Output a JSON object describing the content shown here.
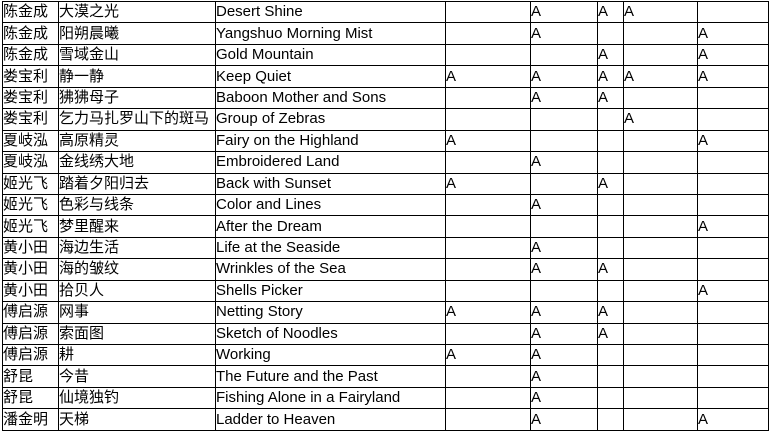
{
  "table": {
    "marker_letter": "A",
    "colors": {
      "background": "#ffffff",
      "border": "#000000",
      "text": "#000000"
    },
    "columns": {
      "author_key": "author",
      "chinese_title_key": "title_cn",
      "english_title_key": "title_en",
      "mark_count": 5
    },
    "rows": [
      {
        "author": "陈金成",
        "title_cn": "大漠之光",
        "title_en": "Desert Shine",
        "marks": [
          "",
          "A",
          "A",
          "A",
          ""
        ]
      },
      {
        "author": "陈金成",
        "title_cn": "阳朔晨曦",
        "title_en": "Yangshuo Morning Mist",
        "marks": [
          "",
          "A",
          "",
          "",
          "A"
        ]
      },
      {
        "author": "陈金成",
        "title_cn": "雪域金山",
        "title_en": "Gold Mountain",
        "marks": [
          "",
          "",
          "A",
          "",
          "A"
        ]
      },
      {
        "author": "娄宝利",
        "title_cn": "静一静",
        "title_en": "Keep Quiet",
        "marks": [
          "A",
          "A",
          "A",
          "A",
          "A"
        ]
      },
      {
        "author": "娄宝利",
        "title_cn": "狒狒母子",
        "title_en": "Baboon Mother and Sons",
        "marks": [
          "",
          "A",
          "A",
          "",
          ""
        ]
      },
      {
        "author": "娄宝利",
        "title_cn": "乞力马扎罗山下的斑马",
        "title_en": "Group of Zebras",
        "marks": [
          "",
          "",
          "",
          "A",
          ""
        ]
      },
      {
        "author": "夏岐泓",
        "title_cn": "高原精灵",
        "title_en": "Fairy on the Highland",
        "marks": [
          "A",
          "",
          "",
          "",
          "A"
        ]
      },
      {
        "author": "夏岐泓",
        "title_cn": "金线绣大地",
        "title_en": "Embroidered Land",
        "marks": [
          "",
          "A",
          "",
          "",
          ""
        ]
      },
      {
        "author": "姬光飞",
        "title_cn": "踏着夕阳归去",
        "title_en": "Back with Sunset",
        "marks": [
          "A",
          "",
          "A",
          "",
          ""
        ]
      },
      {
        "author": "姬光飞",
        "title_cn": "色彩与线条",
        "title_en": "Color and Lines",
        "marks": [
          "",
          "A",
          "",
          "",
          ""
        ]
      },
      {
        "author": "姬光飞",
        "title_cn": "梦里醒来",
        "title_en": "After the Dream",
        "marks": [
          "",
          "",
          "",
          "",
          "A"
        ]
      },
      {
        "author": "黄小田",
        "title_cn": "海边生活",
        "title_en": "Life at the Seaside",
        "marks": [
          "",
          "A",
          "",
          "",
          ""
        ]
      },
      {
        "author": "黄小田",
        "title_cn": "海的皱纹",
        "title_en": "Wrinkles of the Sea",
        "marks": [
          "",
          "A",
          "A",
          "",
          ""
        ]
      },
      {
        "author": "黄小田",
        "title_cn": "拾贝人",
        "title_en": "Shells Picker",
        "marks": [
          "",
          "",
          "",
          "",
          "A"
        ]
      },
      {
        "author": "傅启源",
        "title_cn": "网事",
        "title_en": "Netting Story",
        "marks": [
          "A",
          "A",
          "A",
          "",
          ""
        ]
      },
      {
        "author": "傅启源",
        "title_cn": "索面图",
        "title_en": "Sketch of Noodles",
        "marks": [
          "",
          "A",
          "A",
          "",
          ""
        ]
      },
      {
        "author": "傅启源",
        "title_cn": "耕",
        "title_en": "Working",
        "marks": [
          "A",
          "A",
          "",
          "",
          ""
        ]
      },
      {
        "author": "舒昆",
        "title_cn": "今昔",
        "title_en": "The Future and the Past",
        "marks": [
          "",
          "A",
          "",
          "",
          ""
        ]
      },
      {
        "author": "舒昆",
        "title_cn": "仙境独钓",
        "title_en": "Fishing Alone in a Fairyland",
        "marks": [
          "",
          "A",
          "",
          "",
          ""
        ]
      },
      {
        "author": "潘金明",
        "title_cn": "天梯",
        "title_en": "Ladder to Heaven",
        "marks": [
          "",
          "A",
          "",
          "",
          "A"
        ]
      }
    ]
  }
}
